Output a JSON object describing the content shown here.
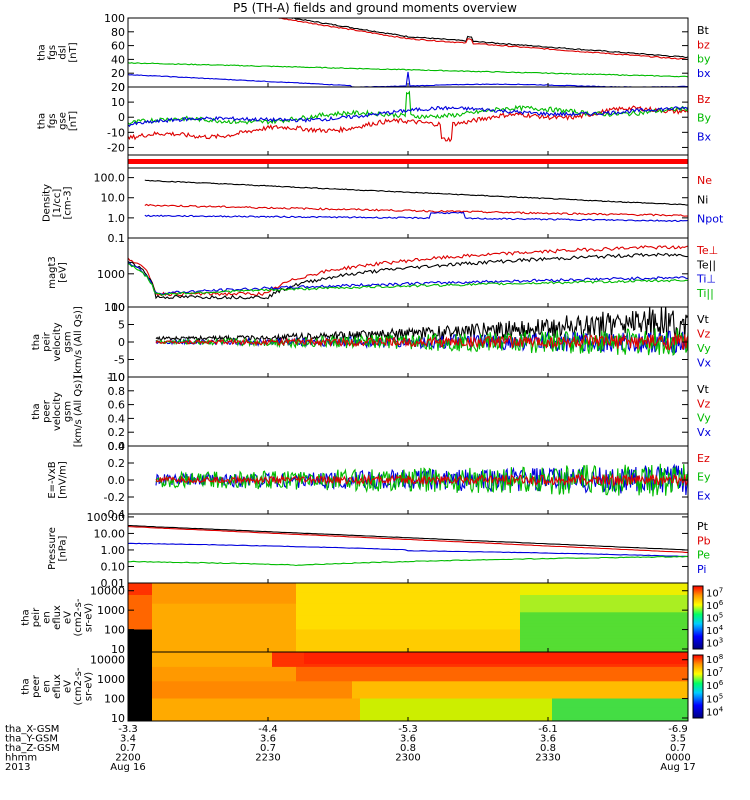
{
  "title": "P5 (TH-A) fields and ground moments overview",
  "panels": [
    {
      "id": "fgs_dsl",
      "ylabel": [
        "tha",
        "fgs",
        "dsl",
        "[nT]"
      ],
      "yticks": [
        "0",
        "20",
        "40",
        "60",
        "80",
        "100"
      ],
      "ylim": [
        0,
        100
      ],
      "ylog": false,
      "legend": [
        {
          "label": "Bt",
          "color": "#000000"
        },
        {
          "label": "bz",
          "color": "#dd0000"
        },
        {
          "label": "by",
          "color": "#00bb00"
        },
        {
          "label": "bx",
          "color": "#0000dd"
        }
      ]
    },
    {
      "id": "fgs_gse",
      "ylabel": [
        "tha",
        "fgs",
        "gse",
        "[nT]"
      ],
      "yticks": [
        "-20",
        "-10",
        "0",
        "10",
        "20"
      ],
      "ylim": [
        -25,
        20
      ],
      "ylog": false,
      "legend": [
        {
          "label": "Bz",
          "color": "#dd0000"
        },
        {
          "label": "By",
          "color": "#00bb00"
        },
        {
          "label": "Bx",
          "color": "#0000dd"
        }
      ]
    },
    {
      "id": "bar",
      "ylabel": [],
      "yticks": [],
      "ylim": [
        0,
        1
      ],
      "ylog": false,
      "legend": []
    },
    {
      "id": "density",
      "ylabel": [
        "Density",
        "[1/cc]",
        "[cm-3]"
      ],
      "yticks": [
        "0.1",
        "1.0",
        "10.0",
        "100.0"
      ],
      "ylim": [
        0.1,
        300
      ],
      "ylog": true,
      "legend": [
        {
          "label": "Ne",
          "color": "#dd0000"
        },
        {
          "label": "Ni",
          "color": "#000000"
        },
        {
          "label": "Npot",
          "color": "#0000dd"
        }
      ]
    },
    {
      "id": "temp",
      "ylabel": [
        "magt3",
        "[eV]"
      ],
      "yticks": [
        "100",
        "1000"
      ],
      "ylim": [
        100,
        12000
      ],
      "ylog": true,
      "legend": [
        {
          "label": "Te⊥",
          "color": "#dd0000"
        },
        {
          "label": "Te||",
          "color": "#000000"
        },
        {
          "label": "Ti⊥",
          "color": "#0000dd"
        },
        {
          "label": "Ti||",
          "color": "#00bb00"
        }
      ]
    },
    {
      "id": "vi",
      "ylabel": [
        "tha",
        "peir",
        "velocity",
        "gsm",
        "[km/s (All Qs)]"
      ],
      "yticks": [
        "-10",
        "-5",
        "0",
        "5",
        "10"
      ],
      "ylim": [
        -10,
        10
      ],
      "ylog": false,
      "legend": [
        {
          "label": "Vt",
          "color": "#000000"
        },
        {
          "label": "Vz",
          "color": "#dd0000"
        },
        {
          "label": "Vy",
          "color": "#00bb00"
        },
        {
          "label": "Vx",
          "color": "#0000dd"
        }
      ]
    },
    {
      "id": "ve",
      "ylabel": [
        "tha",
        "peer",
        "velocity",
        "gsm",
        "[km/s (All Qs)]"
      ],
      "yticks": [
        "0.0",
        "0.2",
        "0.4",
        "0.6",
        "0.8",
        "1.0"
      ],
      "ylim": [
        0,
        1
      ],
      "ylog": false,
      "legend": [
        {
          "label": "Vt",
          "color": "#000000"
        },
        {
          "label": "Vz",
          "color": "#dd0000"
        },
        {
          "label": "Vy",
          "color": "#00bb00"
        },
        {
          "label": "Vx",
          "color": "#0000dd"
        }
      ]
    },
    {
      "id": "efield",
      "ylabel": [
        "E=-VxB",
        "[mV/m]"
      ],
      "yticks": [
        "-0.4",
        "-0.2",
        "0.0",
        "0.2",
        "0.4"
      ],
      "ylim": [
        -0.4,
        0.4
      ],
      "ylog": false,
      "legend": [
        {
          "label": "Ez",
          "color": "#dd0000"
        },
        {
          "label": "Ey",
          "color": "#00bb00"
        },
        {
          "label": "Ex",
          "color": "#0000dd"
        }
      ]
    },
    {
      "id": "pressure",
      "ylabel": [
        "Pressure",
        "[nPa]"
      ],
      "yticks": [
        "0.01",
        "0.10",
        "1.00",
        "10.00",
        "100.00"
      ],
      "ylim": [
        0.01,
        150
      ],
      "ylog": true,
      "legend": [
        {
          "label": "Pt",
          "color": "#000000"
        },
        {
          "label": "Pb",
          "color": "#dd0000"
        },
        {
          "label": "Pe",
          "color": "#00bb00"
        },
        {
          "label": "Pi",
          "color": "#0000dd"
        }
      ]
    },
    {
      "id": "ion_spec",
      "ylabel": [
        "tha",
        "peir",
        "en",
        "eflux",
        "eV",
        "(cm2-s-",
        "sr-eV)"
      ],
      "yticks": [
        "10",
        "100",
        "1000",
        "10000"
      ],
      "ylim": [
        7,
        25000
      ],
      "ylog": true,
      "colorbar": {
        "ticks": [
          "10^3",
          "10^4",
          "10^5",
          "10^6",
          "10^7"
        ],
        "range": [
          2.5,
          7.5
        ]
      },
      "legend": []
    },
    {
      "id": "ele_spec",
      "ylabel": [
        "tha",
        "peer",
        "en",
        "eflux",
        "eV",
        "(cm2-s-",
        "sr-eV)"
      ],
      "yticks": [
        "10",
        "100",
        "1000",
        "10000"
      ],
      "ylim": [
        7,
        25000
      ],
      "ylog": true,
      "colorbar": {
        "ticks": [
          "10^4",
          "10^5",
          "10^6",
          "10^7",
          "10^8"
        ],
        "range": [
          3.5,
          8.3
        ]
      },
      "legend": []
    }
  ],
  "xaxis": {
    "rows": [
      {
        "label": "tha_X-GSM",
        "values": [
          "-3.3",
          "-4.4",
          "-5.3",
          "-6.1",
          "-6.9"
        ]
      },
      {
        "label": "tha_Y-GSM",
        "values": [
          "3.4",
          "3.6",
          "3.6",
          "3.6",
          "3.5"
        ]
      },
      {
        "label": "tha_Z-GSM",
        "values": [
          "0.7",
          "0.7",
          "0.8",
          "0.8",
          "0.7"
        ]
      },
      {
        "label": "hhmm",
        "values": [
          "2200",
          "2230",
          "2300",
          "2330",
          "0000"
        ]
      },
      {
        "label": "2013",
        "values": [
          "Aug 16",
          "",
          "",
          "",
          "Aug 17"
        ]
      }
    ]
  },
  "chart_data": {
    "type": "line",
    "title": "P5 (TH-A) fields and ground moments overview",
    "x": [
      "2200",
      "2230",
      "2300",
      "2330",
      "0000"
    ],
    "series": [
      {
        "name": "Bt",
        "values": [
          140,
          88,
          70,
          57,
          43
        ]
      },
      {
        "name": "bz",
        "values": [
          138,
          86,
          68,
          56,
          42
        ]
      },
      {
        "name": "by",
        "values": [
          35,
          25,
          20,
          18,
          13
        ]
      },
      {
        "name": "bx",
        "values": [
          18,
          3,
          3,
          1,
          0
        ]
      },
      {
        "name": "Ni",
        "values": [
          80,
          20,
          6,
          3,
          2
        ]
      },
      {
        "name": "Ne",
        "values": [
          4,
          1.5,
          1.2,
          0.8,
          0.8
        ]
      },
      {
        "name": "Npot",
        "values": [
          1.5,
          0.9,
          1.3,
          0.5,
          0.5
        ]
      },
      {
        "name": "Pt",
        "values": [
          30,
          10,
          3.5,
          1.5,
          1.0
        ]
      },
      {
        "name": "Pb",
        "values": [
          27,
          8,
          3,
          1.3,
          0.7
        ]
      },
      {
        "name": "Pi",
        "values": [
          2.5,
          1.0,
          0.6,
          0.4,
          0.3
        ]
      },
      {
        "name": "Pe",
        "values": [
          0.2,
          0.12,
          0.25,
          0.3,
          0.3
        ]
      }
    ]
  }
}
